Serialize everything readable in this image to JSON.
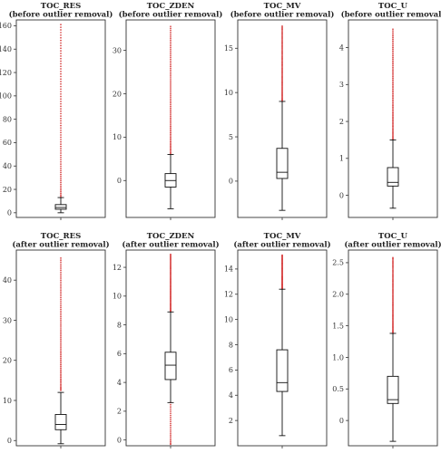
{
  "colors": {
    "outlier": "#d63c3c",
    "box": "#111111",
    "frame": "#333333"
  },
  "chart_data": [
    {
      "type": "box",
      "title_line1": "TOC_RES",
      "title_line2": "(before outlier removal)",
      "ylim": [
        -4,
        165
      ],
      "yticks": [
        0,
        20,
        40,
        60,
        80,
        100,
        120,
        140,
        160
      ],
      "q1": 3,
      "median": 4.5,
      "q3": 7,
      "whisker_low": 0,
      "whisker_high": 13,
      "outlier_range": [
        13,
        161
      ]
    },
    {
      "type": "box",
      "title_line1": "TOC_ZDEN",
      "title_line2": "(before outlier removal)",
      "ylim": [
        -8.5,
        37
      ],
      "yticks": [
        0,
        10,
        20,
        30
      ],
      "q1": -1.5,
      "median": 0,
      "q3": 1.6,
      "whisker_low": -6.5,
      "whisker_high": 6,
      "outlier_range": [
        6,
        35.5
      ]
    },
    {
      "type": "box",
      "title_line1": "TOC_MV",
      "title_line2": "(before outlier removal)",
      "ylim": [
        -4.1,
        18.2
      ],
      "yticks": [
        0,
        5,
        10,
        15
      ],
      "q1": 0.3,
      "median": 1,
      "q3": 3.7,
      "whisker_low": -3.3,
      "whisker_high": 9,
      "outlier_range": [
        9,
        17.5
      ]
    },
    {
      "type": "box",
      "title_line1": "TOC_U",
      "title_line2": "(before outlier removal)",
      "ylim": [
        -0.6,
        4.75
      ],
      "yticks": [
        0,
        1,
        2,
        3,
        4
      ],
      "q1": 0.25,
      "median": 0.35,
      "q3": 0.75,
      "whisker_low": -0.35,
      "whisker_high": 1.5,
      "outlier_range": [
        1.5,
        4.5
      ]
    },
    {
      "type": "box",
      "title_line1": "TOC_RES",
      "title_line2": "(after outlier removal)",
      "ylim": [
        -1.3,
        47.5
      ],
      "yticks": [
        0,
        10,
        20,
        30,
        40
      ],
      "q1": 2.7,
      "median": 4,
      "q3": 6.5,
      "whisker_low": -0.8,
      "whisker_high": 12,
      "outlier_range": [
        12.5,
        45.5
      ]
    },
    {
      "type": "box",
      "title_line1": "TOC_ZDEN",
      "title_line2": "(after outlier removal)",
      "ylim": [
        -0.4,
        13.2
      ],
      "yticks": [
        0,
        2,
        4,
        6,
        8,
        10,
        12
      ],
      "q1": 4.2,
      "median": 5.2,
      "q3": 6.1,
      "whisker_low": 2.6,
      "whisker_high": 8.9,
      "outlier_range": [
        8.9,
        12.9
      ],
      "lower_outlier_range": [
        -0.3,
        2.6
      ]
    },
    {
      "type": "box",
      "title_line1": "TOC_MV",
      "title_line2": "(after outlier removal)",
      "ylim": [
        0,
        15.5
      ],
      "yticks": [
        2,
        4,
        6,
        8,
        10,
        12,
        14
      ],
      "q1": 4.3,
      "median": 5,
      "q3": 7.6,
      "whisker_low": 0.8,
      "whisker_high": 12.4,
      "outlier_range": [
        12.4,
        15.1
      ]
    },
    {
      "type": "box",
      "title_line1": "TOC_U",
      "title_line2": "(after outlier removal)",
      "ylim": [
        -0.4,
        2.7
      ],
      "yticks": [
        0,
        0.5,
        1,
        1.5,
        2,
        2.5
      ],
      "ytick_labels": [
        "0",
        "0.5",
        "1.0",
        "1.5",
        "2.0",
        "2.5"
      ],
      "q1": 0.27,
      "median": 0.33,
      "q3": 0.7,
      "whisker_low": -0.33,
      "whisker_high": 1.38,
      "outlier_range": [
        1.38,
        2.58
      ]
    }
  ]
}
